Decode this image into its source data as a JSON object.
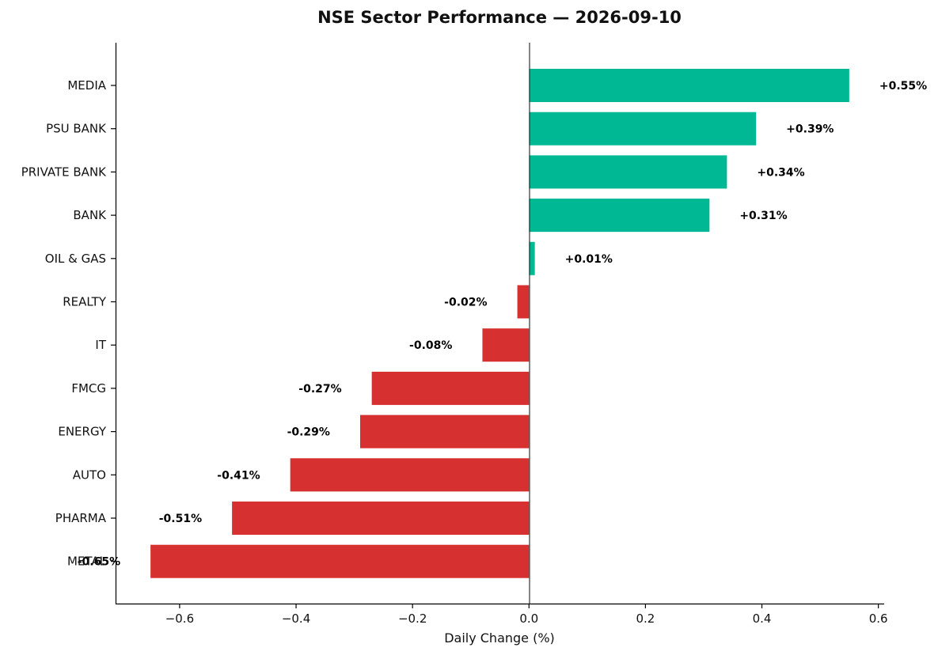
{
  "chart_data": {
    "type": "bar",
    "orientation": "horizontal",
    "title": "NSE Sector Performance — 2026-09-10",
    "xlabel": "Daily Change (%)",
    "ylabel": "",
    "xlim": [
      -0.71,
      0.61
    ],
    "xticks": [
      -0.6,
      -0.4,
      -0.2,
      0.0,
      0.2,
      0.4,
      0.6
    ],
    "xtick_labels": [
      "−0.6",
      "−0.4",
      "−0.2",
      "0.0",
      "0.2",
      "0.4",
      "0.6"
    ],
    "grid": false,
    "colors": {
      "positive": "#00b894",
      "negative": "#d63031"
    },
    "categories": [
      "MEDIA",
      "PSU BANK",
      "PRIVATE BANK",
      "BANK",
      "OIL & GAS",
      "REALTY",
      "IT",
      "FMCG",
      "ENERGY",
      "AUTO",
      "PHARMA",
      "METAL"
    ],
    "values": [
      0.55,
      0.39,
      0.34,
      0.31,
      0.01,
      -0.02,
      -0.08,
      -0.27,
      -0.29,
      -0.41,
      -0.51,
      -0.65
    ],
    "value_labels": [
      "+0.55%",
      "+0.39%",
      "+0.34%",
      "+0.31%",
      "+0.01%",
      "-0.02%",
      "-0.08%",
      "-0.27%",
      "-0.29%",
      "-0.41%",
      "-0.51%",
      "-0.65%"
    ]
  }
}
